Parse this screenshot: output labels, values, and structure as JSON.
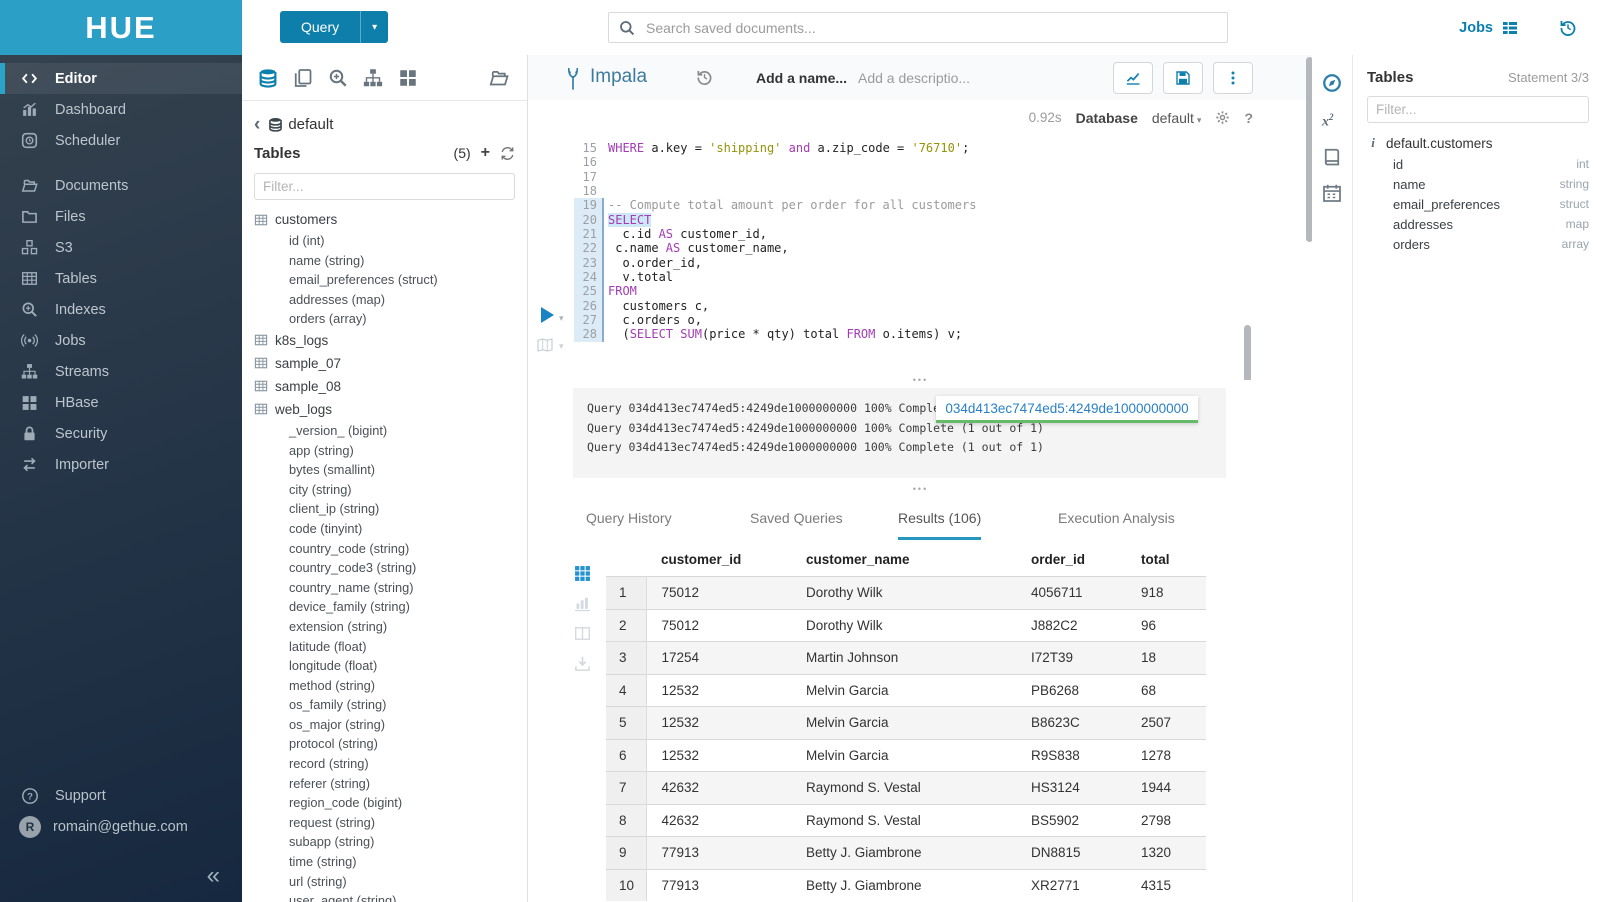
{
  "brand": {
    "logo_text": "HUE"
  },
  "topbar": {
    "query_button": "Query",
    "search_placeholder": "Search saved documents...",
    "jobs_label": "Jobs"
  },
  "sidebar": {
    "items": [
      {
        "label": "Editor",
        "icon": "code",
        "active": true
      },
      {
        "label": "Dashboard",
        "icon": "chart"
      },
      {
        "label": "Scheduler",
        "icon": "clock"
      },
      {
        "label": "Documents",
        "icon": "docfolder",
        "gap_before": true
      },
      {
        "label": "Files",
        "icon": "folder"
      },
      {
        "label": "S3",
        "icon": "cubes"
      },
      {
        "label": "Tables",
        "icon": "tablegrid"
      },
      {
        "label": "Indexes",
        "icon": "zoomplus"
      },
      {
        "label": "Jobs",
        "icon": "broadcast"
      },
      {
        "label": "Streams",
        "icon": "sitemap"
      },
      {
        "label": "HBase",
        "icon": "blocks"
      },
      {
        "label": "Security",
        "icon": "lock"
      },
      {
        "label": "Importer",
        "icon": "swap"
      }
    ],
    "support_label": "Support",
    "user_email": "romain@gethue.com",
    "avatar_initial": "R",
    "collapse_glyph": "«"
  },
  "left_panel": {
    "breadcrumb_db": "default",
    "tables_title": "Tables",
    "tables_count": "(5)",
    "filter_placeholder": "Filter...",
    "tables": [
      {
        "name": "customers",
        "columns": [
          "id (int)",
          "name (string)",
          "email_preferences (struct)",
          "addresses (map)",
          "orders (array)"
        ]
      },
      {
        "name": "k8s_logs",
        "columns": []
      },
      {
        "name": "sample_07",
        "columns": []
      },
      {
        "name": "sample_08",
        "columns": []
      },
      {
        "name": "web_logs",
        "columns": [
          "_version_ (bigint)",
          "app (string)",
          "bytes (smallint)",
          "city (string)",
          "client_ip (string)",
          "code (tinyint)",
          "country_code (string)",
          "country_code3 (string)",
          "country_name (string)",
          "device_family (string)",
          "extension (string)",
          "latitude (float)",
          "longitude (float)",
          "method (string)",
          "os_family (string)",
          "os_major (string)",
          "protocol (string)",
          "record (string)",
          "referer (string)",
          "region_code (bigint)",
          "request (string)",
          "subapp (string)",
          "time (string)",
          "url (string)",
          "user_agent (string)"
        ]
      }
    ]
  },
  "editor": {
    "engine": "Impala",
    "name_placeholder": "Add a name...",
    "description_placeholder": "Add a descriptio...",
    "duration": "0.92s",
    "database_label": "Database",
    "database_value": "default",
    "lines": [
      {
        "n": 15,
        "active": false,
        "parts": [
          [
            "kw",
            "WHERE"
          ],
          [
            "pl",
            " a.key = "
          ],
          [
            "str",
            "'shipping'"
          ],
          [
            "pl",
            " "
          ],
          [
            "kw",
            "and"
          ],
          [
            "pl",
            " a.zip_code = "
          ],
          [
            "str",
            "'76710'"
          ],
          [
            "pl",
            ";"
          ]
        ]
      },
      {
        "n": 16,
        "active": false,
        "parts": []
      },
      {
        "n": 17,
        "active": false,
        "parts": []
      },
      {
        "n": 18,
        "active": false,
        "parts": []
      },
      {
        "n": 19,
        "active": true,
        "parts": [
          [
            "com",
            "-- Compute total amount per order for all customers"
          ]
        ]
      },
      {
        "n": 20,
        "active": true,
        "parts": [
          [
            "kw hl",
            "SELECT"
          ]
        ]
      },
      {
        "n": 21,
        "active": true,
        "parts": [
          [
            "pl",
            "  c.id "
          ],
          [
            "kw",
            "AS"
          ],
          [
            "pl",
            " customer_id,"
          ]
        ]
      },
      {
        "n": 22,
        "active": true,
        "parts": [
          [
            "pl",
            " c.name "
          ],
          [
            "kw",
            "AS"
          ],
          [
            "pl",
            " customer_name,"
          ]
        ]
      },
      {
        "n": 23,
        "active": true,
        "parts": [
          [
            "pl",
            "  o.order_id,"
          ]
        ]
      },
      {
        "n": 24,
        "active": true,
        "parts": [
          [
            "pl",
            "  v.total"
          ]
        ]
      },
      {
        "n": 25,
        "active": true,
        "parts": [
          [
            "kw",
            "FROM"
          ]
        ]
      },
      {
        "n": 26,
        "active": true,
        "parts": [
          [
            "pl",
            "  customers c,"
          ]
        ]
      },
      {
        "n": 27,
        "active": true,
        "parts": [
          [
            "pl",
            "  c.orders o,"
          ]
        ]
      },
      {
        "n": 28,
        "active": true,
        "parts": [
          [
            "pl",
            "  ("
          ],
          [
            "kw",
            "SELECT"
          ],
          [
            "pl",
            " "
          ],
          [
            "kw",
            "SUM"
          ],
          [
            "pl",
            "(price * qty) total "
          ],
          [
            "kw",
            "FROM"
          ],
          [
            "pl",
            " o.items) v;"
          ]
        ]
      }
    ],
    "log_lines": [
      "Query 034d413ec7474ed5:4249de1000000000 100% Complete (1 out of 1)",
      "Query 034d413ec7474ed5:4249de1000000000 100% Complete (1 out of 1)",
      "Query 034d413ec7474ed5:4249de1000000000 100% Complete (1 out of 1)"
    ],
    "job_id_tooltip": "034d413ec7474ed5:4249de1000000000"
  },
  "result_tabs": [
    {
      "label": "Query History",
      "active": false
    },
    {
      "label": "Saved Queries",
      "active": false
    },
    {
      "label": "Results (106)",
      "active": true
    },
    {
      "label": "Execution Analysis",
      "active": false
    }
  ],
  "results": {
    "columns": [
      "customer_id",
      "customer_name",
      "order_id",
      "total"
    ],
    "rows": [
      [
        "1",
        "75012",
        "Dorothy Wilk",
        "4056711",
        "918"
      ],
      [
        "2",
        "75012",
        "Dorothy Wilk",
        "J882C2",
        "96"
      ],
      [
        "3",
        "17254",
        "Martin Johnson",
        "I72T39",
        "18"
      ],
      [
        "4",
        "12532",
        "Melvin Garcia",
        "PB6268",
        "68"
      ],
      [
        "5",
        "12532",
        "Melvin Garcia",
        "B8623C",
        "2507"
      ],
      [
        "6",
        "12532",
        "Melvin Garcia",
        "R9S838",
        "1278"
      ],
      [
        "7",
        "42632",
        "Raymond S. Vestal",
        "HS3124",
        "1944"
      ],
      [
        "8",
        "42632",
        "Raymond S. Vestal",
        "BS5902",
        "2798"
      ],
      [
        "9",
        "77913",
        "Betty J. Giambrone",
        "DN8815",
        "1320"
      ],
      [
        "10",
        "77913",
        "Betty J. Giambrone",
        "XR2771",
        "4315"
      ]
    ]
  },
  "right_panel": {
    "title": "Tables",
    "statement_counter": "Statement 3/3",
    "filter_placeholder": "Filter...",
    "table_ref": "default.customers",
    "columns": [
      {
        "name": "id",
        "type": "int"
      },
      {
        "name": "name",
        "type": "string"
      },
      {
        "name": "email_preferences",
        "type": "struct"
      },
      {
        "name": "addresses",
        "type": "map"
      },
      {
        "name": "orders",
        "type": "array"
      }
    ]
  },
  "colors": {
    "header_blue": "#2b9fc6",
    "accent_blue": "#0e7fab",
    "keyword_purple": "#a33cb5",
    "string_olive": "#949409",
    "comment_gray": "#9b9b9b",
    "active_tab_underline": "#2596be",
    "tooltip_link_blue": "#2980c9",
    "tooltip_underline_green": "#66bb6a"
  }
}
